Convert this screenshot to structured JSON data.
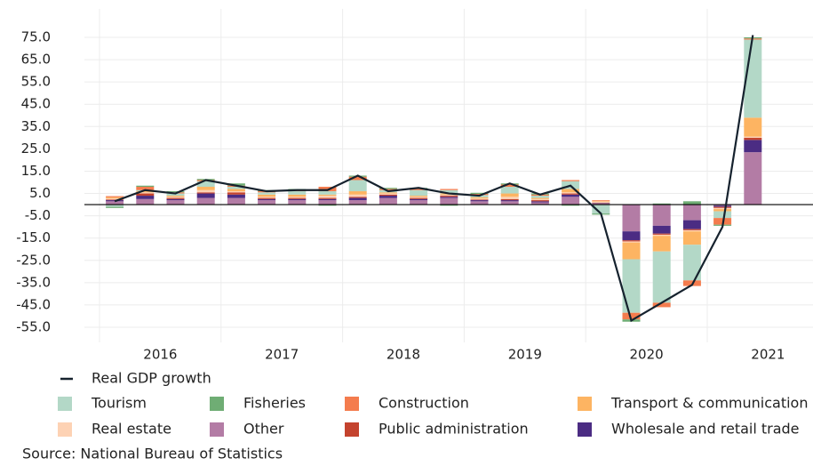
{
  "chart_data": {
    "type": "stacked-bar-line",
    "groups": [
      "2016",
      "2017",
      "2018",
      "2019",
      "2020",
      "2021"
    ],
    "ylim": [
      -55,
      75
    ],
    "yticks": [
      {
        "value": 75,
        "label": "75.0"
      },
      {
        "value": 65,
        "label": "65.0"
      },
      {
        "value": 55,
        "label": "55.0"
      },
      {
        "value": 45,
        "label": "45.0"
      },
      {
        "value": 35,
        "label": "35.0"
      },
      {
        "value": 25,
        "label": "25.0"
      },
      {
        "value": 15,
        "label": "15.0"
      },
      {
        "value": 5,
        "label": "5.0"
      },
      {
        "value": -5,
        "label": "-5.0"
      },
      {
        "value": -15,
        "label": "-15.0"
      },
      {
        "value": -25,
        "label": "-25.0"
      },
      {
        "value": -35,
        "label": "-35.0"
      },
      {
        "value": -45,
        "label": "-45.0"
      },
      {
        "value": -55,
        "label": "-55.0"
      }
    ],
    "grid": true,
    "line": {
      "name": "Real GDP growth",
      "color": "#16222e",
      "values": [
        1.5,
        6.5,
        5,
        11,
        8.5,
        6,
        6.5,
        6.5,
        13,
        6,
        7.5,
        5,
        4,
        9.5,
        4.5,
        8.5,
        -4,
        -52,
        -44,
        -36,
        -10,
        76
      ]
    },
    "series": [
      {
        "name": "Tourism",
        "color": "#b3d8c7",
        "values": [
          -1,
          0.5,
          1,
          2.5,
          1,
          1,
          1.5,
          1.5,
          5,
          1,
          2.5,
          1.5,
          1,
          3,
          1,
          3.5,
          -4,
          -24,
          -23,
          -16,
          -3,
          35
        ]
      },
      {
        "name": "Fisheries",
        "color": "#6fad74",
        "values": [
          -0.5,
          0.5,
          0.5,
          0.5,
          1,
          0.5,
          0.5,
          -0.5,
          0.5,
          0.5,
          0.5,
          -0.5,
          0.5,
          0.5,
          0.5,
          -0.5,
          -0.5,
          -1,
          0.5,
          1.5,
          -0.5,
          0.5
        ]
      },
      {
        "name": "Construction",
        "color": "#f47c4e",
        "values": [
          0.5,
          1.5,
          0.5,
          0.5,
          0.5,
          0.5,
          0.5,
          2,
          1.5,
          0.5,
          0.5,
          0.5,
          0.5,
          1,
          0.5,
          0.5,
          0.3,
          -3,
          -2,
          -2.5,
          -3,
          0.5
        ]
      },
      {
        "name": "Transport & communication",
        "color": "#fdb462",
        "values": [
          0.5,
          0.5,
          0.5,
          1.5,
          1,
          1,
          1,
          0.5,
          1.5,
          0.5,
          0.5,
          0.5,
          0.5,
          1.5,
          0.5,
          1.5,
          0.3,
          -7.5,
          -7,
          -6,
          -1,
          8.5
        ]
      },
      {
        "name": "Real estate",
        "color": "#fdd2b4",
        "values": [
          0.5,
          0.5,
          0.5,
          1,
          0.5,
          0.5,
          0.5,
          1,
          1,
          0.5,
          0.5,
          0.5,
          0.5,
          1,
          0.5,
          0.5,
          0.5,
          -0.5,
          -0.5,
          -0.5,
          -0.5,
          0.5
        ]
      },
      {
        "name": "Other",
        "color": "#b37ca5",
        "values": [
          1.5,
          2.5,
          2,
          3,
          3,
          2,
          2,
          2,
          2,
          3,
          2,
          3,
          1.5,
          1.5,
          1,
          3.5,
          0.5,
          -12,
          -9.5,
          -7,
          -0.5,
          23.5
        ]
      },
      {
        "name": "Public administration",
        "color": "#c4432e",
        "values": [
          0.3,
          1,
          0.5,
          0.5,
          1,
          0.5,
          0.5,
          0.5,
          0.5,
          0.5,
          0.5,
          0.5,
          0.3,
          0.5,
          0.5,
          0.5,
          0.2,
          -0.5,
          -0.5,
          -0.5,
          -0.5,
          1
        ]
      },
      {
        "name": "Wholesale and retail trade",
        "color": "#4b2c83",
        "values": [
          0.5,
          1.5,
          0.5,
          2,
          1.5,
          0.5,
          0.5,
          0.5,
          1,
          1,
          0.5,
          0.5,
          0.5,
          0.5,
          0.5,
          1,
          0.2,
          -4,
          -3.5,
          -4,
          -0.5,
          5.5
        ]
      }
    ],
    "source": "Source: National Bureau of Statistics"
  }
}
